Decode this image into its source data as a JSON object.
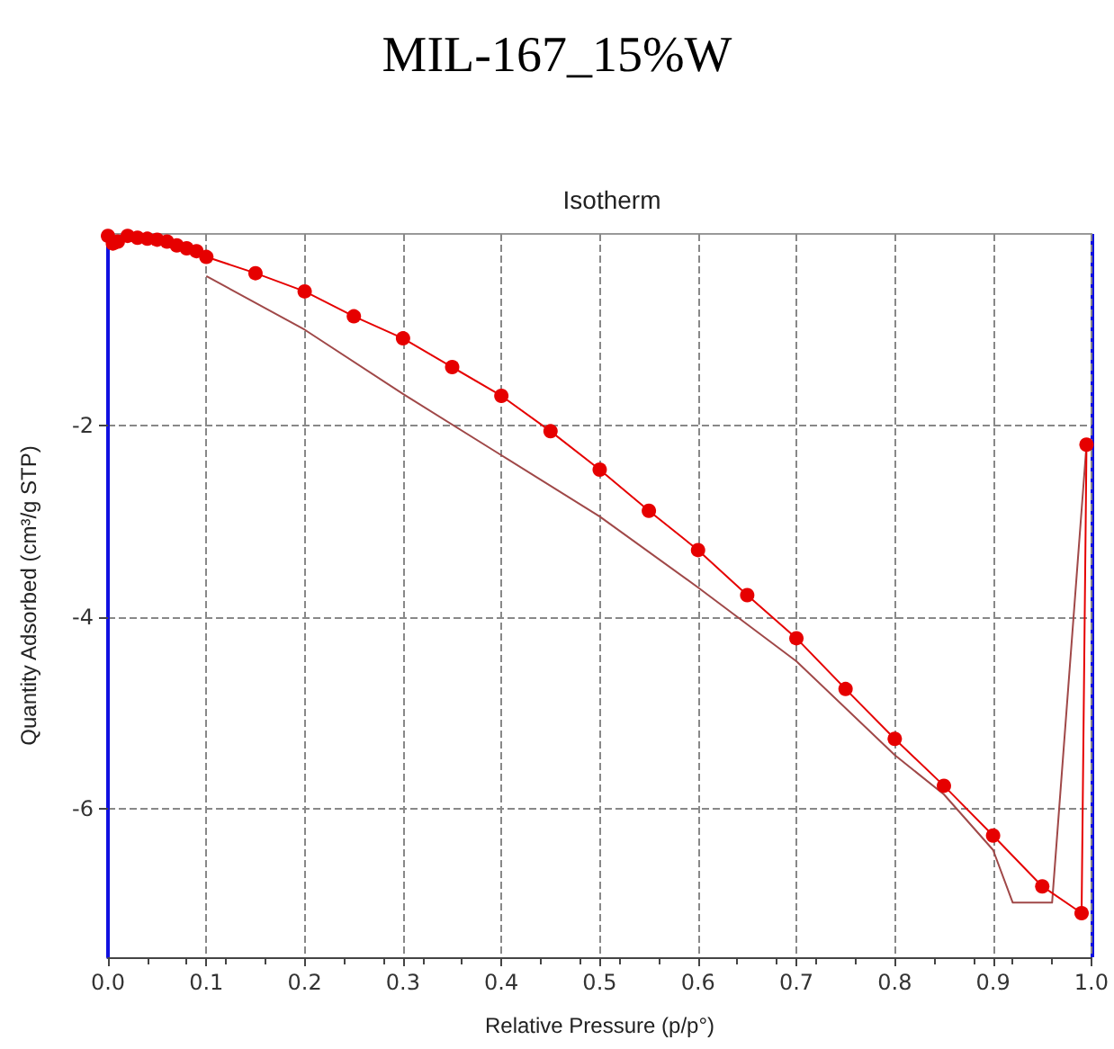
{
  "chart_data": {
    "type": "line",
    "title": "MIL-167_15%W",
    "subtitle": "Isotherm",
    "xlabel": "Relative Pressure (p/p°)",
    "ylabel": "Quantity Adsorbed (cm³/g STP)",
    "xlim": [
      0,
      1
    ],
    "xticks": [
      {
        "value": 0,
        "label": "0.0"
      },
      0.1,
      0.2,
      0.3,
      0.4,
      0.5,
      0.6,
      0.7,
      0.8,
      0.9,
      {
        "value": 1,
        "label": "1.0"
      }
    ],
    "ylim": [
      -7.55,
      0
    ],
    "yticks": [
      -2,
      -4,
      -6
    ],
    "grid": true,
    "series": [
      {
        "color": "#e60000",
        "marker": "circle",
        "x": [
          0.0,
          0.005,
          0.01,
          0.02,
          0.03,
          0.04,
          0.05,
          0.06,
          0.07,
          0.08,
          0.09,
          0.1,
          0.15,
          0.2,
          0.25,
          0.3,
          0.35,
          0.4,
          0.45,
          0.5,
          0.55,
          0.6,
          0.65,
          0.7,
          0.75,
          0.8,
          0.85,
          0.9,
          0.95,
          0.99,
          0.995
        ],
        "values": [
          -0.02,
          -0.1,
          -0.08,
          -0.02,
          -0.04,
          -0.05,
          -0.06,
          -0.08,
          -0.12,
          -0.15,
          -0.18,
          -0.24,
          -0.41,
          -0.6,
          -0.86,
          -1.09,
          -1.39,
          -1.69,
          -2.06,
          -2.46,
          -2.89,
          -3.3,
          -3.77,
          -4.22,
          -4.75,
          -5.27,
          -5.76,
          -6.28,
          -6.81,
          -7.09,
          -2.2
        ]
      },
      {
        "color": "#a04848",
        "marker": "none",
        "x": [
          0.995,
          0.96,
          0.92,
          0.9,
          0.85,
          0.8,
          0.7,
          0.6,
          0.5,
          0.4,
          0.3,
          0.2,
          0.1
        ],
        "values": [
          -2.2,
          -6.98,
          -6.98,
          -6.43,
          -5.85,
          -5.44,
          -4.46,
          -3.69,
          -2.95,
          -2.31,
          -1.67,
          -1.0,
          -0.44
        ]
      }
    ]
  }
}
